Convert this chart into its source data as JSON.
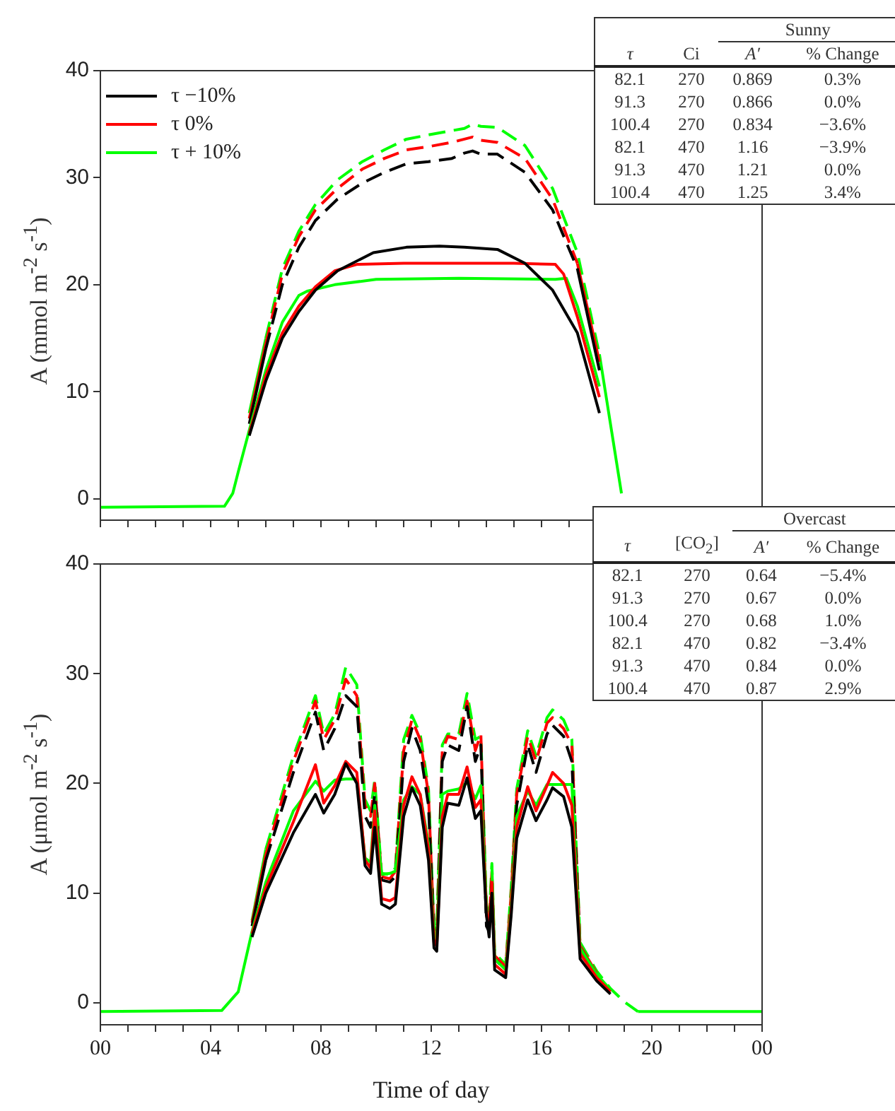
{
  "chart_data": [
    {
      "type": "line",
      "ylabel": "A (mmol m$^{-2}$ s$^{-1}$)",
      "xlim": [
        0,
        24
      ],
      "ylim": [
        -2,
        40
      ],
      "yticks": [
        0,
        10,
        20,
        30,
        40
      ],
      "xticks": [
        {
          "value": 0,
          "label": null
        },
        {
          "value": 1,
          "label": null
        },
        {
          "value": 2,
          "label": null
        },
        {
          "value": 3,
          "label": null
        },
        {
          "value": 4,
          "label": null
        },
        {
          "value": 5,
          "label": null
        },
        {
          "value": 6,
          "label": null
        },
        {
          "value": 7,
          "label": null
        },
        {
          "value": 8,
          "label": null
        },
        {
          "value": 9,
          "label": null
        },
        {
          "value": 10,
          "label": null
        },
        {
          "value": 11,
          "label": null
        },
        {
          "value": 12,
          "label": null
        },
        {
          "value": 13,
          "label": null
        },
        {
          "value": 14,
          "label": null
        },
        {
          "value": 15,
          "label": null
        },
        {
          "value": 16,
          "label": null
        },
        {
          "value": 17,
          "label": null
        },
        {
          "value": 18,
          "label": null
        },
        {
          "value": 19,
          "label": null
        },
        {
          "value": 20,
          "label": null
        },
        {
          "value": 21,
          "label": null
        },
        {
          "value": 22,
          "label": null
        },
        {
          "value": 23,
          "label": null
        },
        {
          "value": 24,
          "label": null
        }
      ],
      "tick_labels": "y",
      "legend": "top left",
      "grid": false,
      "series": [
        {
          "name": "τ −10%",
          "color": "#000000",
          "line_style": "solid",
          "x": [
            5.4,
            6.0,
            6.6,
            7.2,
            7.8,
            8.6,
            9.9,
            11.1,
            12.3,
            13.2,
            14.4,
            15.4,
            16.4,
            17.3,
            18.1
          ],
          "values": [
            5.9,
            11,
            15,
            17.5,
            19.5,
            21.3,
            23,
            23.5,
            23.6,
            23.5,
            23.3,
            22,
            19.5,
            15.5,
            8
          ]
        },
        {
          "name": "τ 0%",
          "color": "#ff0000",
          "line_style": "solid",
          "x": [
            5.4,
            6.0,
            6.6,
            7.2,
            7.8,
            8.5,
            9.3,
            11,
            13,
            15,
            16.5,
            16.8,
            17.3,
            18.1
          ],
          "values": [
            6.1,
            11.5,
            15.5,
            18,
            19.8,
            21.3,
            21.9,
            22,
            22,
            22,
            21.9,
            21,
            17,
            9.5
          ]
        },
        {
          "name": "τ + 10%",
          "color": "#00ff00",
          "line_style": "solid",
          "x": [
            0,
            4.5,
            4.8,
            5.0,
            5.4,
            6.0,
            6.6,
            7.2,
            7.5,
            8.5,
            10,
            13,
            16.5,
            16.9,
            17.3,
            18.1
          ],
          "values": [
            -0.8,
            -0.7,
            0.5,
            2.5,
            6.4,
            12,
            16.5,
            19,
            19.4,
            20,
            20.5,
            20.6,
            20.5,
            20.6,
            18,
            10.5
          ]
        },
        {
          "color": "#000000",
          "line_style": "dashed",
          "x": [
            5.4,
            6.0,
            6.6,
            7.2,
            7.8,
            8.6,
            9.5,
            10.3,
            11.1,
            11.9,
            12.75,
            13.2,
            13.5,
            13.8,
            14.4,
            15.4,
            16.4,
            17.3,
            18.1
          ],
          "values": [
            7,
            14,
            20,
            23.5,
            26,
            28,
            29.5,
            30.5,
            31.3,
            31.5,
            31.8,
            32.3,
            32.5,
            32.2,
            32.2,
            30.5,
            27,
            21.5,
            12
          ]
        },
        {
          "color": "#ff0000",
          "line_style": "dashed",
          "x": [
            5.4,
            6.0,
            6.6,
            7.2,
            7.8,
            8.6,
            9.5,
            10.3,
            11.1,
            11.9,
            12.75,
            13.2,
            13.5,
            13.8,
            14.4,
            15.4,
            16.4,
            17.3,
            18.1
          ],
          "values": [
            7.5,
            14.5,
            21,
            24.5,
            27,
            29,
            30.8,
            31.8,
            32.6,
            32.9,
            33.3,
            33.6,
            33.8,
            33.5,
            33.3,
            31.8,
            28,
            22,
            12.8
          ]
        },
        {
          "color": "#00ff00",
          "line_style": "dashed",
          "x": [
            5.4,
            6.0,
            6.6,
            7.2,
            7.8,
            8.6,
            9.5,
            10.3,
            11.1,
            11.9,
            12.75,
            13.2,
            13.5,
            13.8,
            14.4,
            15.4,
            16.4,
            17.3,
            18.1,
            18.9
          ],
          "values": [
            8,
            15,
            21.5,
            25,
            27.5,
            29.8,
            31.5,
            32.6,
            33.6,
            34,
            34.4,
            34.6,
            35,
            34.8,
            34.7,
            33,
            29,
            23,
            13.5,
            0.5
          ]
        }
      ],
      "annotations": [
        "Sunny",
        "τ",
        "Ci",
        "A′",
        "% Change",
        "82.1",
        "270",
        "0.869",
        "0.3%",
        "91.3",
        "270",
        "0.866",
        "0.0%",
        "100.4",
        "270",
        "0.834",
        "−3.6%",
        "82.1",
        "470",
        "1.16",
        "−3.9%",
        "91.3",
        "470",
        "1.21",
        "0.0%",
        "100.4",
        "470",
        "1.25",
        "3.4%"
      ]
    },
    {
      "type": "line",
      "ylabel": "A (μmol m$^{-2}$ s$^{-1}$)",
      "xlabel": "Time of day",
      "xlim": [
        0,
        24
      ],
      "ylim": [
        -2,
        40
      ],
      "yticks": [
        0,
        10,
        20,
        30,
        40
      ],
      "xticks": [
        {
          "value": 0,
          "label": "00"
        },
        {
          "value": 1,
          "label": null
        },
        {
          "value": 2,
          "label": null
        },
        {
          "value": 3,
          "label": null
        },
        {
          "value": 4,
          "label": "04"
        },
        {
          "value": 5,
          "label": null
        },
        {
          "value": 6,
          "label": null
        },
        {
          "value": 7,
          "label": null
        },
        {
          "value": 8,
          "label": "08"
        },
        {
          "value": 9,
          "label": null
        },
        {
          "value": 10,
          "label": null
        },
        {
          "value": 11,
          "label": null
        },
        {
          "value": 12,
          "label": "12"
        },
        {
          "value": 13,
          "label": null
        },
        {
          "value": 14,
          "label": null
        },
        {
          "value": 15,
          "label": null
        },
        {
          "value": 16,
          "label": "16"
        },
        {
          "value": 17,
          "label": null
        },
        {
          "value": 18,
          "label": null
        },
        {
          "value": 19,
          "label": null
        },
        {
          "value": 20,
          "label": "20"
        },
        {
          "value": 21,
          "label": null
        },
        {
          "value": 22,
          "label": null
        },
        {
          "value": 23,
          "label": null
        },
        {
          "value": 24,
          "label": "00"
        }
      ],
      "grid": false,
      "x": [
        0,
        4.4,
        5.0,
        5.5,
        6.0,
        7.0,
        7.8,
        8.1,
        8.5,
        8.9,
        9.3,
        9.6,
        9.8,
        9.95,
        10.2,
        10.5,
        10.7,
        11.0,
        11.3,
        11.6,
        11.9,
        12.1,
        12.2,
        12.4,
        12.6,
        13.0,
        13.3,
        13.6,
        13.8,
        14.0,
        14.1,
        14.2,
        14.3,
        14.7,
        14.9,
        15.1,
        15.5,
        15.8,
        16.2,
        16.4,
        16.8,
        17.1,
        17.4,
        18.0,
        18.5,
        19.0,
        19.5,
        24
      ],
      "series": [
        {
          "color": "#000000",
          "line_style": "solid",
          "values": [
            null,
            null,
            null,
            6,
            10,
            15.5,
            19,
            17.3,
            19,
            21.8,
            20,
            12.5,
            11.8,
            16,
            9,
            8.6,
            9,
            17,
            19.6,
            18,
            13,
            5,
            4.7,
            16,
            18.2,
            18,
            20.5,
            16.8,
            17.5,
            8,
            6,
            10,
            3,
            2.3,
            8,
            15,
            18.5,
            16.6,
            18.5,
            19.6,
            18.8,
            16,
            4,
            2,
            0.8,
            null,
            null,
            null
          ]
        },
        {
          "color": "#ff0000",
          "line_style": "solid",
          "values": [
            null,
            null,
            null,
            6.3,
            10.5,
            16.5,
            21.7,
            18.2,
            19.8,
            22,
            21,
            13,
            12.3,
            17.5,
            9.5,
            9.3,
            9.6,
            18,
            20.6,
            19,
            14,
            5.5,
            5.2,
            17,
            19,
            19,
            21.5,
            17.8,
            18.5,
            8.5,
            6.5,
            11,
            3.5,
            2.6,
            8.5,
            16,
            19.7,
            17.5,
            19.8,
            21,
            20,
            18,
            4.5,
            2.3,
            1,
            null,
            null,
            null
          ]
        },
        {
          "color": "#00ff00",
          "line_style": "solid",
          "values": [
            -0.8,
            -0.7,
            1,
            6.5,
            11,
            17.5,
            20.2,
            19.3,
            20.3,
            20.4,
            20.4,
            13.2,
            12.8,
            18,
            11.7,
            11.8,
            12,
            18.5,
            19.7,
            19,
            14.5,
            6,
            5.8,
            19,
            19.3,
            19.5,
            20.1,
            18.6,
            19.8,
            9,
            null,
            12.5,
            4,
            3,
            9,
            17,
            19.3,
            18,
            19.9,
            19.9,
            19.9,
            19.9,
            5,
            2.6,
            1.2,
            null,
            null,
            null
          ]
        },
        {
          "color": "#000000",
          "line_style": "dashed",
          "values": [
            null,
            null,
            null,
            7,
            13,
            21,
            26.5,
            23,
            25,
            28,
            27,
            17,
            16,
            19,
            11.2,
            11,
            11.5,
            22,
            25,
            23,
            18,
            6,
            5.5,
            22,
            23.5,
            23,
            27,
            22,
            23.5,
            7,
            6.5,
            11,
            4,
            3,
            9,
            18,
            23.5,
            21,
            24.5,
            25.3,
            24.3,
            22,
            5,
            2.5,
            null,
            null,
            null,
            null
          ]
        },
        {
          "color": "#ff0000",
          "line_style": "dashed",
          "values": [
            null,
            null,
            null,
            7.3,
            13.5,
            22,
            27.5,
            24,
            25.8,
            29.5,
            28,
            18,
            17,
            20,
            11.5,
            11.3,
            12,
            23,
            25.8,
            24,
            19,
            6.5,
            6,
            23,
            24.3,
            24,
            27.5,
            23,
            24.5,
            8,
            7,
            12,
            4.3,
            3.3,
            10,
            19,
            24.3,
            22,
            25.5,
            26,
            25,
            23.5,
            5.2,
            2.7,
            null,
            null,
            null,
            null
          ]
        },
        {
          "color": "#00ff00",
          "line_style": "dashed",
          "values": [
            null,
            null,
            null,
            7.5,
            14,
            22.5,
            28,
            24.5,
            26.3,
            30.6,
            29,
            18.5,
            17.5,
            20.3,
            11.8,
            11.7,
            12.3,
            24,
            26.2,
            24.5,
            19.5,
            7,
            6.5,
            23.5,
            24.5,
            24.5,
            28.2,
            24,
            24.3,
            9,
            7.5,
            12.7,
            4.5,
            3.5,
            10.5,
            19.5,
            24.8,
            22.5,
            26,
            26.7,
            25.8,
            24,
            5.5,
            2.9,
            1.3,
            0.1,
            -0.8,
            -0.8
          ]
        }
      ],
      "annotations": [
        "Overcast",
        "τ",
        "[CO$_{2}$]",
        "A′",
        "% Change",
        "82.1",
        "270",
        "0.64",
        "−5.4%",
        "91.3",
        "270",
        "0.67",
        "0.0%",
        "100.4",
        "270",
        "0.68",
        "1.0%",
        "82.1",
        "470",
        "0.82",
        "−3.4%",
        "91.3",
        "470",
        "0.84",
        "0.0%",
        "100.4",
        "470",
        "0.87",
        "2.9%"
      ]
    }
  ]
}
